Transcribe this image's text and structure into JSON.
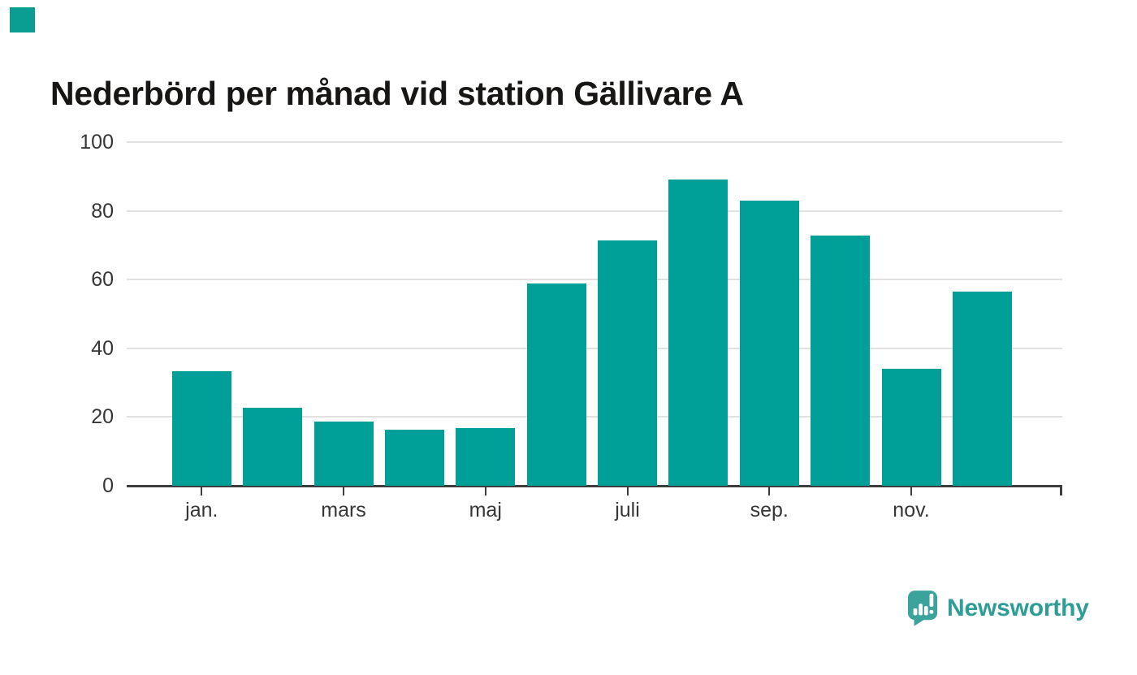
{
  "title": "Nederbörd per månad vid station Gällivare A",
  "brand": {
    "name": "Newsworthy",
    "color": "#2E9D96",
    "icon_color": "#3BA39B",
    "accent_square_color": "#0A9D92"
  },
  "chart_data": {
    "type": "bar",
    "title": "Nederbörd per månad vid station Gällivare A",
    "categories": [
      "jan.",
      "",
      "mars",
      "",
      "maj",
      "",
      "juli",
      "",
      "sep.",
      "",
      "nov.",
      ""
    ],
    "values": [
      33.3,
      22.7,
      18.7,
      16.3,
      16.8,
      58.9,
      71.4,
      89.1,
      83.0,
      72.8,
      34.0,
      56.5
    ],
    "x_tick_labels": [
      "jan.",
      "mars",
      "maj",
      "juli",
      "sep.",
      "nov."
    ],
    "x_tick_month_index": [
      0,
      2,
      4,
      6,
      8,
      10
    ],
    "y_ticks": [
      0,
      20,
      40,
      60,
      80,
      100
    ],
    "ylim": [
      0,
      100
    ],
    "xlabel": "",
    "ylabel": "",
    "grid": true,
    "legend": false,
    "bar_color": "#00A099"
  }
}
